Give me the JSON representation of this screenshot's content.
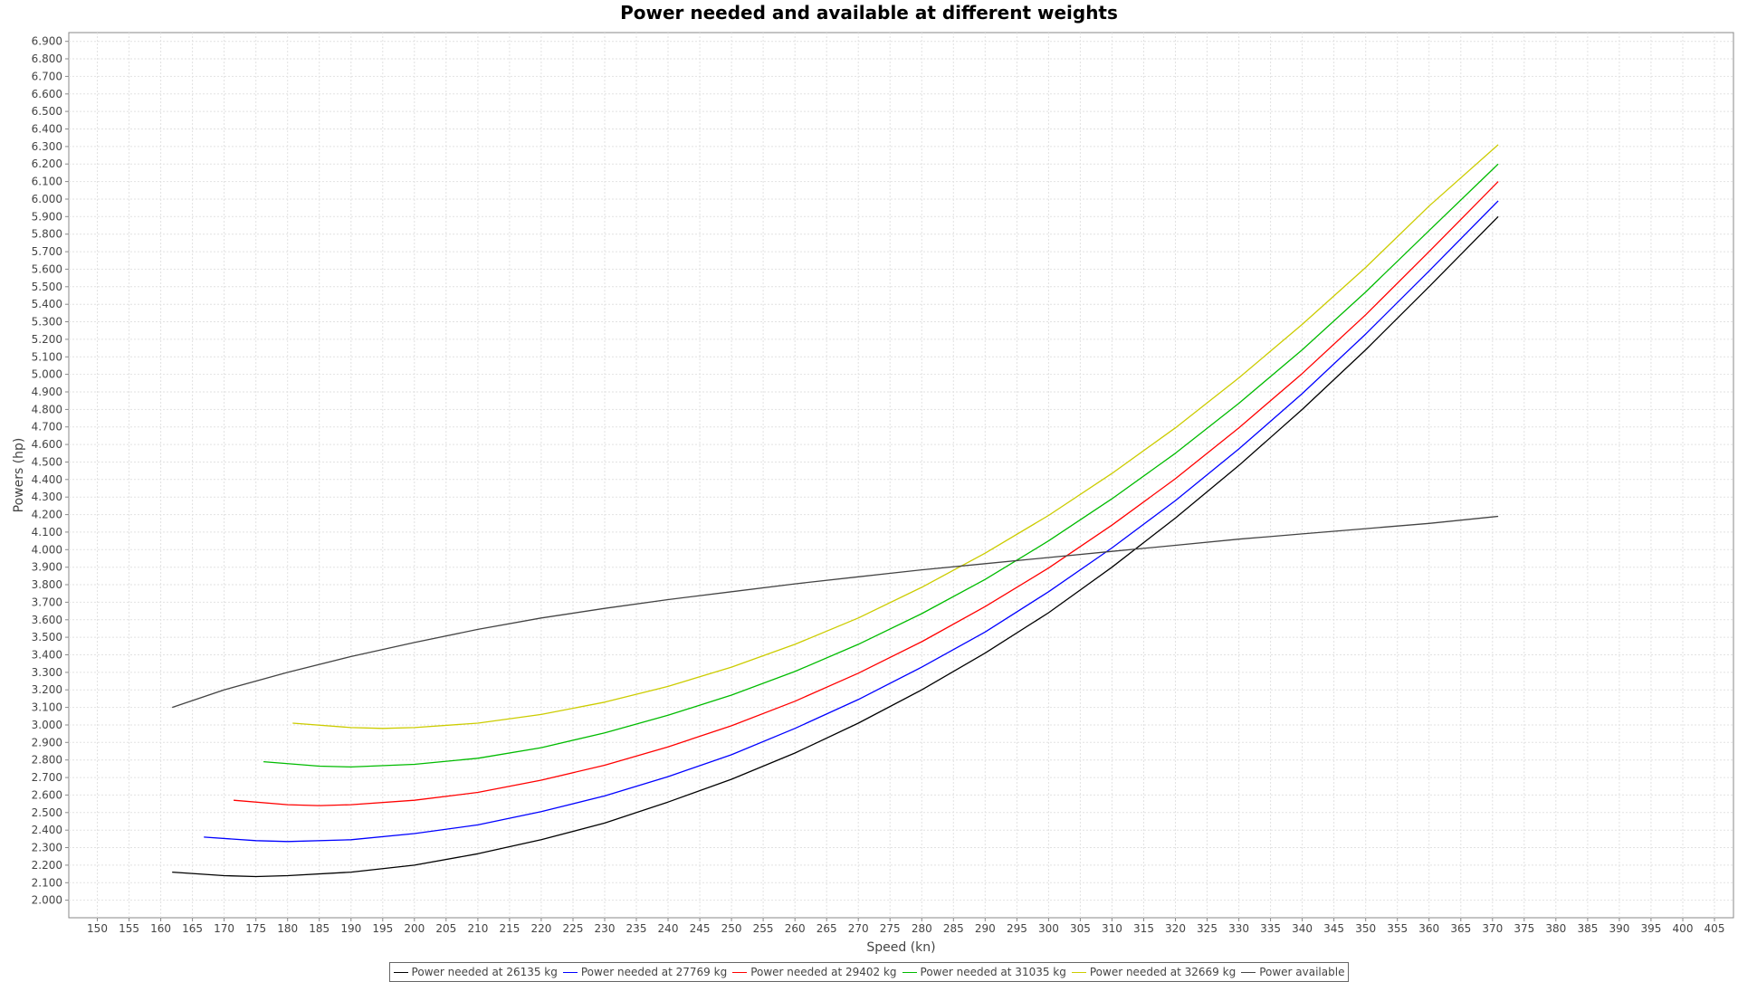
{
  "chart_data": {
    "type": "line",
    "title": "Power needed and available at different weights",
    "xlabel": "Speed (kn)",
    "ylabel": "Powers (hp)",
    "xlim": [
      145.5,
      408
    ],
    "ylim": [
      1.9,
      6.95
    ],
    "xticks": [
      150,
      155,
      160,
      165,
      170,
      175,
      180,
      185,
      190,
      195,
      200,
      205,
      210,
      215,
      220,
      225,
      230,
      235,
      240,
      245,
      250,
      255,
      260,
      265,
      270,
      275,
      280,
      285,
      290,
      295,
      300,
      305,
      310,
      315,
      320,
      325,
      330,
      335,
      340,
      345,
      350,
      355,
      360,
      365,
      370,
      375,
      380,
      385,
      390,
      395,
      400,
      405
    ],
    "yticks": [
      2.0,
      2.1,
      2.2,
      2.3,
      2.4,
      2.5,
      2.6,
      2.7,
      2.8,
      2.9,
      3.0,
      3.1,
      3.2,
      3.3,
      3.4,
      3.5,
      3.6,
      3.7,
      3.8,
      3.9,
      4.0,
      4.1,
      4.2,
      4.3,
      4.4,
      4.5,
      4.6,
      4.7,
      4.8,
      4.9,
      5.0,
      5.1,
      5.2,
      5.3,
      5.4,
      5.5,
      5.6,
      5.7,
      5.8,
      5.9,
      6.0,
      6.1,
      6.2,
      6.3,
      6.4,
      6.5,
      6.6,
      6.7,
      6.8,
      6.9
    ],
    "ytick_labels": [
      "2.000",
      "2.100",
      "2.200",
      "2.300",
      "2.400",
      "2.500",
      "2.600",
      "2.700",
      "2.800",
      "2.900",
      "3.000",
      "3.100",
      "3.200",
      "3.300",
      "3.400",
      "3.500",
      "3.600",
      "3.700",
      "3.800",
      "3.900",
      "4.000",
      "4.100",
      "4.200",
      "4.300",
      "4.400",
      "4.500",
      "4.600",
      "4.700",
      "4.800",
      "4.900",
      "5.000",
      "5.100",
      "5.200",
      "5.300",
      "5.400",
      "5.500",
      "5.600",
      "5.700",
      "5.800",
      "5.900",
      "6.000",
      "6.100",
      "6.200",
      "6.300",
      "6.400",
      "6.500",
      "6.600",
      "6.700",
      "6.800",
      "6.900"
    ],
    "grid": true,
    "legend_position": "bottom-center",
    "series": [
      {
        "name": "Power needed at 26135 kg",
        "color": "#000000",
        "x": [
          161.8,
          170,
          175,
          180,
          190,
          200,
          210,
          220,
          230,
          240,
          250,
          260,
          270,
          280,
          290,
          300,
          310,
          320,
          330,
          340,
          350,
          360,
          370.9
        ],
        "y": [
          2.16,
          2.14,
          2.135,
          2.14,
          2.16,
          2.2,
          2.265,
          2.345,
          2.44,
          2.56,
          2.69,
          2.84,
          3.01,
          3.2,
          3.41,
          3.64,
          3.9,
          4.18,
          4.48,
          4.8,
          5.14,
          5.5,
          5.9
        ]
      },
      {
        "name": "Power needed at 27769 kg",
        "color": "#0000ff",
        "x": [
          166.8,
          175,
          180,
          190,
          200,
          210,
          220,
          230,
          240,
          250,
          260,
          270,
          280,
          290,
          300,
          310,
          320,
          330,
          340,
          350,
          360,
          370.9
        ],
        "y": [
          2.36,
          2.34,
          2.335,
          2.345,
          2.38,
          2.43,
          2.505,
          2.595,
          2.705,
          2.83,
          2.98,
          3.145,
          3.33,
          3.53,
          3.76,
          4.01,
          4.28,
          4.575,
          4.89,
          5.23,
          5.59,
          5.99
        ]
      },
      {
        "name": "Power needed at 29402 kg",
        "color": "#ff0000",
        "x": [
          171.5,
          180,
          185,
          190,
          200,
          210,
          220,
          230,
          240,
          250,
          260,
          270,
          280,
          290,
          300,
          310,
          320,
          330,
          340,
          350,
          360,
          370.9
        ],
        "y": [
          2.57,
          2.545,
          2.54,
          2.545,
          2.57,
          2.615,
          2.685,
          2.77,
          2.875,
          2.995,
          3.135,
          3.295,
          3.475,
          3.675,
          3.895,
          4.14,
          4.405,
          4.695,
          5.005,
          5.34,
          5.7,
          6.1
        ]
      },
      {
        "name": "Power needed at 31035 kg",
        "color": "#00bb00",
        "x": [
          176.2,
          185,
          190,
          200,
          210,
          220,
          230,
          240,
          250,
          260,
          270,
          280,
          290,
          300,
          310,
          320,
          330,
          340,
          350,
          360,
          370.9
        ],
        "y": [
          2.79,
          2.765,
          2.76,
          2.775,
          2.81,
          2.87,
          2.955,
          3.055,
          3.17,
          3.305,
          3.46,
          3.635,
          3.83,
          4.05,
          4.29,
          4.55,
          4.835,
          5.14,
          5.47,
          5.82,
          6.2
        ]
      },
      {
        "name": "Power needed at 32669 kg",
        "color": "#cccc00",
        "x": [
          180.8,
          190,
          195,
          200,
          210,
          220,
          230,
          240,
          250,
          260,
          270,
          280,
          290,
          300,
          310,
          320,
          330,
          340,
          350,
          360,
          370.9
        ],
        "y": [
          3.01,
          2.985,
          2.98,
          2.985,
          3.01,
          3.06,
          3.13,
          3.22,
          3.33,
          3.46,
          3.61,
          3.785,
          3.98,
          4.195,
          4.435,
          4.695,
          4.98,
          5.285,
          5.61,
          5.96,
          6.31
        ]
      },
      {
        "name": "Power available",
        "color": "#444444",
        "x": [
          161.8,
          170,
          180,
          190,
          200,
          210,
          220,
          230,
          240,
          250,
          260,
          270,
          280,
          290,
          300,
          310,
          320,
          330,
          340,
          350,
          360,
          370.9
        ],
        "y": [
          3.1,
          3.2,
          3.3,
          3.39,
          3.47,
          3.545,
          3.61,
          3.665,
          3.715,
          3.76,
          3.805,
          3.845,
          3.885,
          3.92,
          3.955,
          3.99,
          4.025,
          4.06,
          4.09,
          4.12,
          4.15,
          4.19
        ]
      }
    ]
  }
}
